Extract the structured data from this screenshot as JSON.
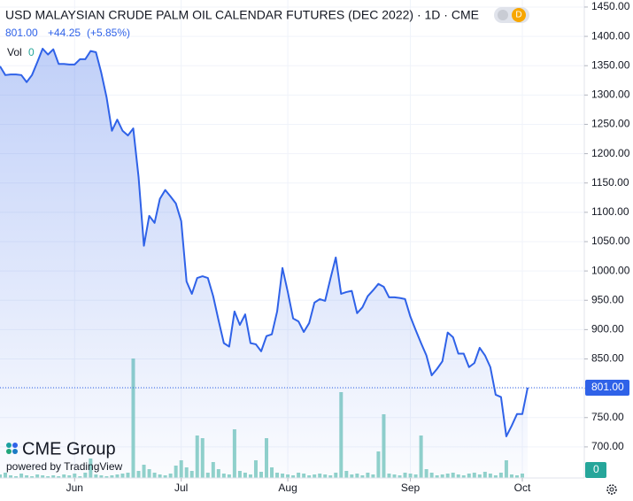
{
  "chart_data": {
    "type": "area",
    "title": "USD MALAYSIAN CRUDE PALM OIL CALENDAR FUTURES (DEC 2022) · 1D · CME",
    "price_label": "801.00",
    "change": "+44.25",
    "change_pct": "(+5.85%)",
    "volume_title": "Vol",
    "brand": "CME Group",
    "powered_by": "powered by TradingView",
    "color": "#2f62e8",
    "volume_color": "#92d3ca",
    "grid": true,
    "categories": [
      null,
      null,
      null,
      null,
      null,
      null,
      null,
      null,
      null,
      null,
      null,
      null,
      null,
      null,
      "Jun",
      null,
      null,
      null,
      null,
      null,
      null,
      null,
      null,
      null,
      null,
      null,
      null,
      null,
      null,
      null,
      null,
      null,
      null,
      null,
      "Jul",
      null,
      null,
      null,
      null,
      null,
      null,
      null,
      null,
      null,
      null,
      null,
      null,
      null,
      null,
      null,
      null,
      null,
      null,
      null,
      "Aug",
      null,
      null,
      null,
      null,
      null,
      null,
      null,
      null,
      null,
      null,
      null,
      null,
      null,
      null,
      null,
      null,
      null,
      null,
      null,
      null,
      null,
      null,
      "Sep",
      null,
      null,
      null,
      null,
      null,
      null,
      null,
      null,
      null,
      null,
      null,
      null,
      null,
      null,
      null,
      null,
      null,
      null,
      null,
      null,
      "Oct",
      null
    ],
    "values": [
      1349,
      1334,
      1335,
      1335,
      1334,
      1322,
      1334,
      1356,
      1379,
      1369,
      1378,
      1353,
      1353,
      1352,
      1352,
      1361,
      1361,
      1375,
      1373,
      1338,
      1296,
      1239,
      1258,
      1239,
      1231,
      1243,
      1160,
      1043,
      1094,
      1082,
      1123,
      1138,
      1127,
      1115,
      1085,
      982,
      961,
      988,
      991,
      988,
      957,
      916,
      877,
      871,
      931,
      908,
      926,
      877,
      875,
      863,
      889,
      892,
      931,
      1005,
      964,
      919,
      914,
      896,
      911,
      946,
      952,
      949,
      987,
      1023,
      961,
      964,
      966,
      928,
      938,
      957,
      967,
      978,
      973,
      955,
      955,
      954,
      952,
      922,
      899,
      877,
      856,
      822,
      833,
      846,
      895,
      887,
      859,
      859,
      836,
      843,
      869,
      856,
      836,
      789,
      785,
      718,
      736,
      756,
      756,
      801
    ],
    "volume": [
      4,
      6,
      3,
      2,
      5,
      3,
      2,
      4,
      3,
      2,
      3,
      2,
      4,
      3,
      5,
      2,
      6,
      22,
      4,
      3,
      2,
      3,
      4,
      5,
      6,
      135,
      8,
      15,
      10,
      6,
      4,
      3,
      5,
      14,
      20,
      12,
      8,
      48,
      45,
      6,
      18,
      10,
      5,
      4,
      55,
      8,
      6,
      4,
      20,
      7,
      45,
      12,
      6,
      5,
      4,
      3,
      6,
      5,
      3,
      4,
      5,
      4,
      3,
      6,
      97,
      8,
      4,
      5,
      3,
      6,
      4,
      30,
      72,
      5,
      4,
      3,
      6,
      5,
      4,
      48,
      10,
      6,
      3,
      4,
      5,
      6,
      4,
      3,
      5,
      6,
      4,
      7,
      5,
      3,
      6,
      20,
      4,
      3,
      5,
      0
    ],
    "ylim": [
      647,
      1462
    ],
    "yticks": [
      {
        "value": 700,
        "label": "700.00"
      },
      {
        "value": 750,
        "label": "750.00"
      },
      {
        "value": 800,
        "label": "800.00"
      },
      {
        "value": 850,
        "label": "850.00"
      },
      {
        "value": 900,
        "label": "900.00"
      },
      {
        "value": 950,
        "label": "950.00"
      },
      {
        "value": 1000,
        "label": "1000.00"
      },
      {
        "value": 1050,
        "label": "1050.00"
      },
      {
        "value": 1100,
        "label": "1100.00"
      },
      {
        "value": 1150,
        "label": "1150.00"
      },
      {
        "value": 1200,
        "label": "1200.00"
      },
      {
        "value": 1250,
        "label": "1250.00"
      },
      {
        "value": 1300,
        "label": "1300.00"
      },
      {
        "value": 1350,
        "label": "1350.00"
      },
      {
        "value": 1400,
        "label": "1400.00"
      },
      {
        "value": 1450,
        "label": "1450.00"
      }
    ]
  }
}
